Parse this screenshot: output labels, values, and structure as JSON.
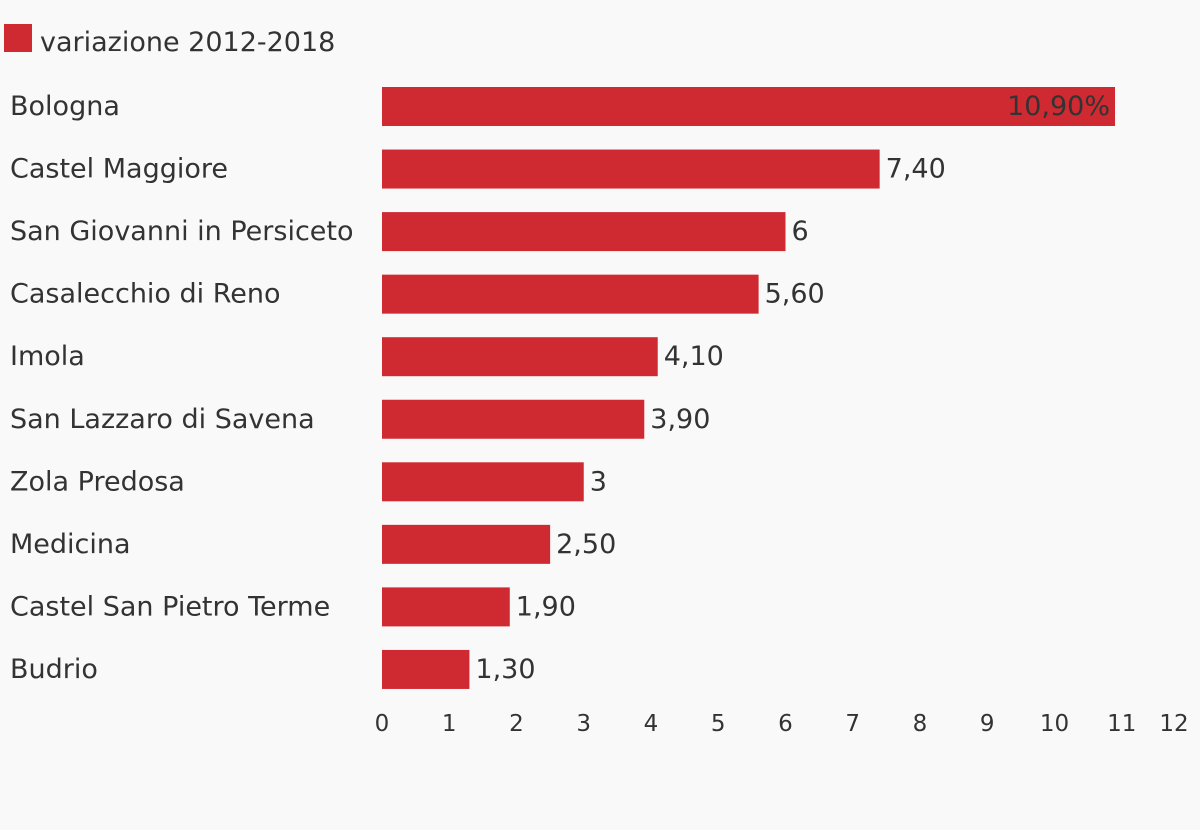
{
  "chart_data": {
    "type": "bar",
    "orientation": "horizontal",
    "categories": [
      "Bologna",
      "Castel Maggiore",
      "San Giovanni in Persiceto",
      "Casalecchio di Reno",
      "Imola",
      "San Lazzaro di Savena",
      "Zola Predosa",
      "Medicina",
      "Castel San Pietro Terme",
      "Budrio"
    ],
    "series": [
      {
        "name": "variazione 2012-2018",
        "color": "#cf2a31",
        "values": [
          10.9,
          7.4,
          6,
          5.6,
          4.1,
          3.9,
          3,
          2.5,
          1.9,
          1.3
        ],
        "value_labels": [
          "10,90%",
          "7,40",
          "6",
          "5,60",
          "4,10",
          "3,90",
          "3",
          "2,50",
          "1,90",
          "1,30"
        ]
      }
    ],
    "xlim": [
      0,
      12
    ],
    "x_ticks": [
      "0",
      "1",
      "2",
      "3",
      "4",
      "5",
      "6",
      "7",
      "8",
      "9",
      "10",
      "11",
      "12"
    ],
    "legend_position": "top-left",
    "grid": false,
    "title": "",
    "xlabel": "",
    "ylabel": ""
  }
}
